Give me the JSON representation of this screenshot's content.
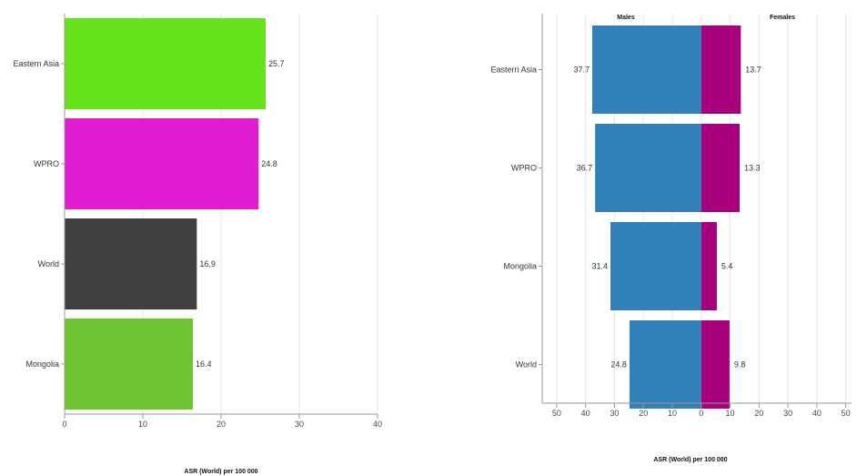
{
  "chart_data": [
    {
      "type": "bar",
      "orientation": "horizontal",
      "categories": [
        "Eastern Asia",
        "WPRO",
        "World",
        "Mongolia"
      ],
      "values": [
        25.7,
        24.8,
        16.9,
        16.4
      ],
      "value_labels": [
        "25.7",
        "24.8",
        "16.9",
        "16.4"
      ],
      "colors": [
        "#66e31c",
        "#e01cd0",
        "#404040",
        "#6ec532"
      ],
      "xlim": [
        0,
        40
      ],
      "xticks": [
        "0",
        "10",
        "20",
        "30",
        "40"
      ],
      "xlabel": "ASR (World) per 100 000",
      "grid": true
    },
    {
      "type": "bar",
      "orientation": "horizontal",
      "layout": "diverging",
      "categories": [
        "Eastern Asia",
        "WPRO",
        "Mongolia",
        "World"
      ],
      "series": [
        {
          "name": "Males",
          "values": [
            37.7,
            36.7,
            31.4,
            24.8
          ],
          "labels": [
            "37.7",
            "36.7",
            "31.4",
            "24.8"
          ],
          "color": "#3180b8"
        },
        {
          "name": "Females",
          "values": [
            13.7,
            13.3,
            5.4,
            9.8
          ],
          "labels": [
            "13.7",
            "13.3",
            "5.4",
            "9.8"
          ],
          "color": "#a6007c"
        }
      ],
      "xlim": [
        -55,
        52
      ],
      "xticks": [
        "50",
        "40",
        "30",
        "20",
        "10",
        "0",
        "10",
        "20",
        "30",
        "40",
        "50"
      ],
      "xlabel": "ASR (World) per 100 000",
      "grid": true
    }
  ]
}
